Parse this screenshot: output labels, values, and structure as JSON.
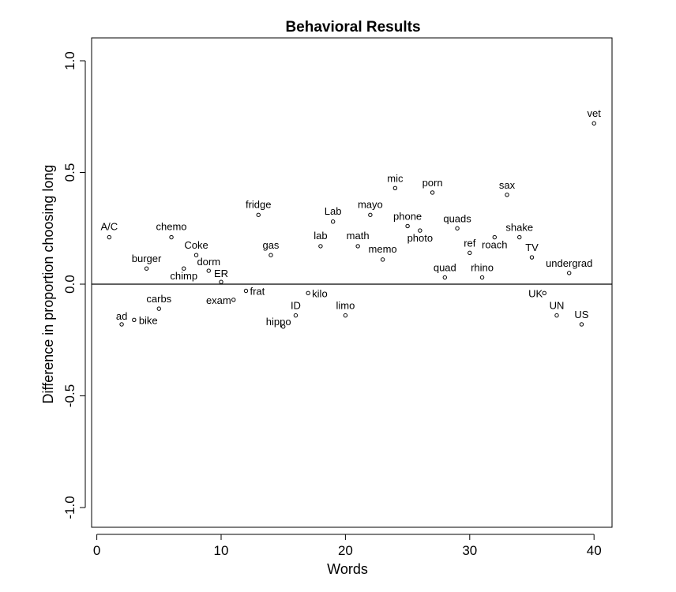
{
  "chart_data": {
    "type": "scatter",
    "title": "Behavioral Results",
    "xlabel": "Words",
    "ylabel": "Difference in proportion choosing long",
    "xlim": [
      -0.5,
      41.5
    ],
    "ylim": [
      -1.1,
      1.1
    ],
    "x_ticks": [
      0,
      10,
      20,
      30,
      40
    ],
    "x_tick_labels": [
      "0",
      "10",
      "20",
      "30",
      "40"
    ],
    "y_ticks": [
      -1.0,
      -0.5,
      0.0,
      0.5,
      1.0
    ],
    "y_tick_labels": [
      "-1.0",
      "-0.5",
      "0.0",
      "0.5",
      "1.0"
    ],
    "reference_line": 0.0,
    "grid": false,
    "legend": "none",
    "points": [
      {
        "x": 1,
        "y": 0.21,
        "label": "A/C"
      },
      {
        "x": 2,
        "y": -0.18,
        "label": "ad"
      },
      {
        "x": 3,
        "y": -0.16,
        "label": "bike"
      },
      {
        "x": 4,
        "y": 0.07,
        "label": "burger"
      },
      {
        "x": 5,
        "y": -0.11,
        "label": "carbs"
      },
      {
        "x": 6,
        "y": 0.21,
        "label": "chemo"
      },
      {
        "x": 7,
        "y": 0.07,
        "label": "chimp"
      },
      {
        "x": 8,
        "y": 0.13,
        "label": "Coke"
      },
      {
        "x": 9,
        "y": 0.06,
        "label": "dorm"
      },
      {
        "x": 10,
        "y": 0.01,
        "label": "ER"
      },
      {
        "x": 11,
        "y": -0.07,
        "label": "exam"
      },
      {
        "x": 12,
        "y": -0.03,
        "label": "frat"
      },
      {
        "x": 13,
        "y": 0.31,
        "label": "fridge"
      },
      {
        "x": 14,
        "y": 0.13,
        "label": "gas"
      },
      {
        "x": 15,
        "y": -0.19,
        "label": "hippo"
      },
      {
        "x": 16,
        "y": -0.14,
        "label": "ID"
      },
      {
        "x": 17,
        "y": -0.04,
        "label": "kilo"
      },
      {
        "x": 18,
        "y": 0.17,
        "label": "lab"
      },
      {
        "x": 19,
        "y": 0.28,
        "label": "Lab"
      },
      {
        "x": 20,
        "y": -0.14,
        "label": "limo"
      },
      {
        "x": 21,
        "y": 0.17,
        "label": "math"
      },
      {
        "x": 22,
        "y": 0.31,
        "label": "mayo"
      },
      {
        "x": 23,
        "y": 0.11,
        "label": "memo"
      },
      {
        "x": 24,
        "y": 0.43,
        "label": "mic"
      },
      {
        "x": 25,
        "y": 0.26,
        "label": "phone"
      },
      {
        "x": 26,
        "y": 0.24,
        "label": "photo"
      },
      {
        "x": 27,
        "y": 0.41,
        "label": "porn"
      },
      {
        "x": 28,
        "y": 0.03,
        "label": "quad"
      },
      {
        "x": 29,
        "y": 0.25,
        "label": "quads"
      },
      {
        "x": 30,
        "y": 0.14,
        "label": "ref"
      },
      {
        "x": 31,
        "y": 0.03,
        "label": "rhino"
      },
      {
        "x": 32,
        "y": 0.21,
        "label": "roach"
      },
      {
        "x": 33,
        "y": 0.4,
        "label": "sax"
      },
      {
        "x": 34,
        "y": 0.21,
        "label": "shake"
      },
      {
        "x": 35,
        "y": 0.12,
        "label": "TV"
      },
      {
        "x": 36,
        "y": -0.04,
        "label": "UK"
      },
      {
        "x": 37,
        "y": -0.14,
        "label": "UN"
      },
      {
        "x": 38,
        "y": 0.05,
        "label": "undergrad"
      },
      {
        "x": 39,
        "y": -0.18,
        "label": "US"
      },
      {
        "x": 40,
        "y": 0.72,
        "label": "vet"
      }
    ]
  }
}
